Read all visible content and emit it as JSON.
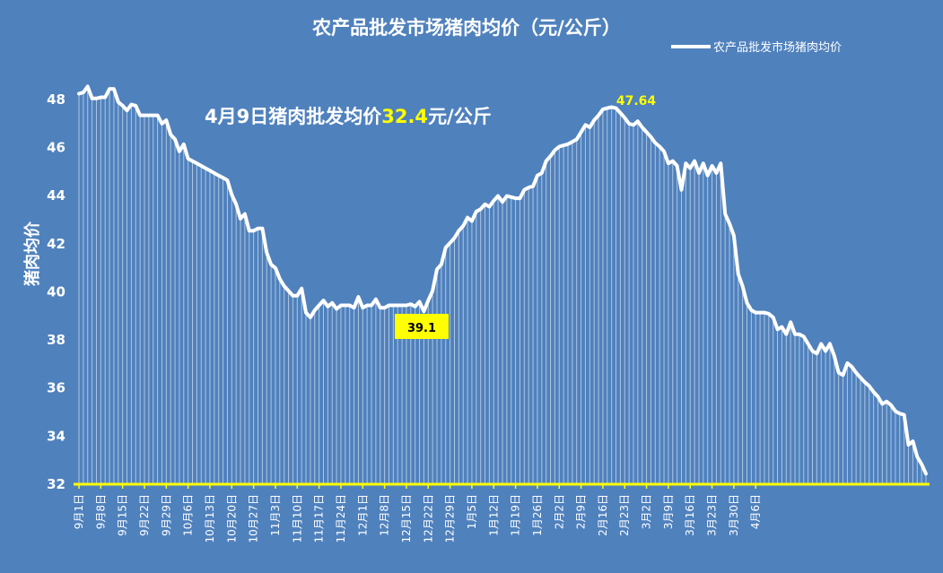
{
  "chart_data": {
    "type": "line",
    "title": "农产品批发市场猪肉均价（元/公斤）",
    "legend": {
      "label": "农产品批发市场猪肉均价",
      "placement": "top-right"
    },
    "ylabel": "猪肉均价",
    "ylim": [
      32,
      49
    ],
    "yticks": [
      32,
      34,
      36,
      38,
      40,
      42,
      44,
      46,
      48
    ],
    "grid": false,
    "annotation_main": {
      "prefix": "4月9日猪肉批发均价",
      "value": "32.4",
      "suffix": "元/公斤"
    },
    "annotation_max": "47.64",
    "annotation_min": "39.1",
    "xticks": [
      "9月1日",
      "9月8日",
      "9月15日",
      "9月22日",
      "9月29日",
      "10月6日",
      "10月13日",
      "10月20日",
      "10月27日",
      "11月3日",
      "11月10日",
      "11月17日",
      "11月24日",
      "12月1日",
      "12月8日",
      "12月15日",
      "12月22日",
      "12月29日",
      "1月5日",
      "1月12日",
      "1月19日",
      "1月26日",
      "2月2日",
      "2月9日",
      "2月16日",
      "2月23日",
      "3月2日",
      "3月9日",
      "3月16日",
      "3月23日",
      "3月30日",
      "4月6日"
    ],
    "series": [
      {
        "name": "农产品批发市场猪肉均价",
        "color": "#ffffff",
        "values": [
          48.2,
          48.25,
          48.5,
          48.0,
          48.0,
          48.05,
          48.05,
          48.4,
          48.4,
          47.85,
          47.7,
          47.5,
          47.75,
          47.7,
          47.3,
          47.3,
          47.3,
          47.3,
          47.3,
          46.95,
          47.1,
          46.5,
          46.3,
          45.8,
          46.1,
          45.5,
          45.4,
          45.3,
          45.2,
          45.1,
          45.0,
          44.9,
          44.8,
          44.7,
          44.6,
          44.0,
          43.6,
          43.0,
          43.2,
          42.5,
          42.5,
          42.6,
          42.6,
          41.6,
          41.1,
          40.95,
          40.5,
          40.2,
          40.0,
          39.8,
          39.8,
          40.1,
          39.1,
          38.9,
          39.2,
          39.4,
          39.6,
          39.35,
          39.5,
          39.25,
          39.4,
          39.4,
          39.4,
          39.3,
          39.75,
          39.3,
          39.4,
          39.4,
          39.65,
          39.3,
          39.3,
          39.4,
          39.4,
          39.4,
          39.4,
          39.4,
          39.45,
          39.35,
          39.55,
          39.15,
          39.6,
          40.0,
          40.9,
          41.1,
          41.8,
          42.0,
          42.2,
          42.5,
          42.7,
          43.05,
          42.9,
          43.3,
          43.4,
          43.6,
          43.5,
          43.75,
          43.95,
          43.7,
          43.95,
          43.9,
          43.85,
          43.85,
          44.2,
          44.3,
          44.35,
          44.8,
          44.9,
          45.4,
          45.6,
          45.85,
          46.0,
          46.05,
          46.1,
          46.2,
          46.3,
          46.6,
          46.9,
          46.8,
          47.1,
          47.3,
          47.55,
          47.6,
          47.64,
          47.6,
          47.4,
          47.2,
          46.95,
          46.9,
          47.05,
          46.8,
          46.6,
          46.4,
          46.15,
          46.0,
          45.8,
          45.3,
          45.4,
          45.2,
          44.2,
          45.3,
          45.1,
          45.4,
          44.9,
          45.3,
          44.8,
          45.2,
          44.9,
          45.3,
          43.2,
          42.8,
          42.3,
          40.7,
          40.2,
          39.5,
          39.2,
          39.1,
          39.1,
          39.1,
          39.05,
          38.9,
          38.4,
          38.5,
          38.2,
          38.7,
          38.2,
          38.2,
          38.1,
          37.8,
          37.5,
          37.4,
          37.8,
          37.5,
          37.8,
          37.3,
          36.6,
          36.5,
          37.0,
          36.85,
          36.6,
          36.4,
          36.2,
          36.05,
          35.8,
          35.6,
          35.3,
          35.4,
          35.25,
          35.0,
          34.9,
          34.85,
          33.6,
          33.75,
          33.1,
          32.8,
          32.4
        ]
      }
    ]
  }
}
